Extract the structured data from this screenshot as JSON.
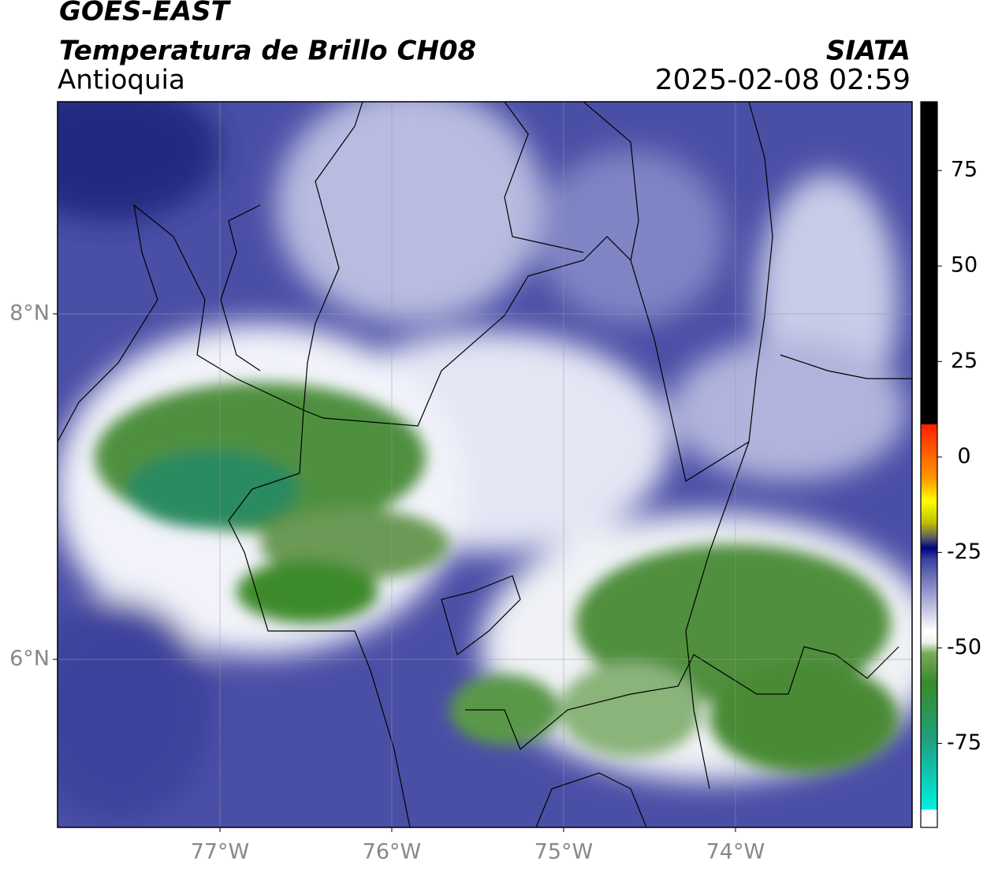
{
  "header": {
    "title": "GOES-EAST",
    "subtitle": "Temperatura de Brillo CH08",
    "region": "Antioquia",
    "source": "SIATA",
    "datetime": "2025-02-08 02:59"
  },
  "map": {
    "xlim": [
      -77.945,
      -72.972
    ],
    "ylim": [
      5.027,
      9.228
    ],
    "lon_ticks": [
      {
        "value": -77,
        "label": "77°W"
      },
      {
        "value": -76,
        "label": "76°W"
      },
      {
        "value": -75,
        "label": "75°W"
      },
      {
        "value": -74,
        "label": "74°W"
      }
    ],
    "lat_ticks": [
      {
        "value": 8,
        "label": "8°N"
      },
      {
        "value": 6,
        "label": "6°N"
      }
    ],
    "grid": true
  },
  "colorbar": {
    "lim": [
      -97,
      93
    ],
    "ticks": [
      75,
      50,
      25,
      0,
      -25,
      -50,
      -75
    ]
  }
}
